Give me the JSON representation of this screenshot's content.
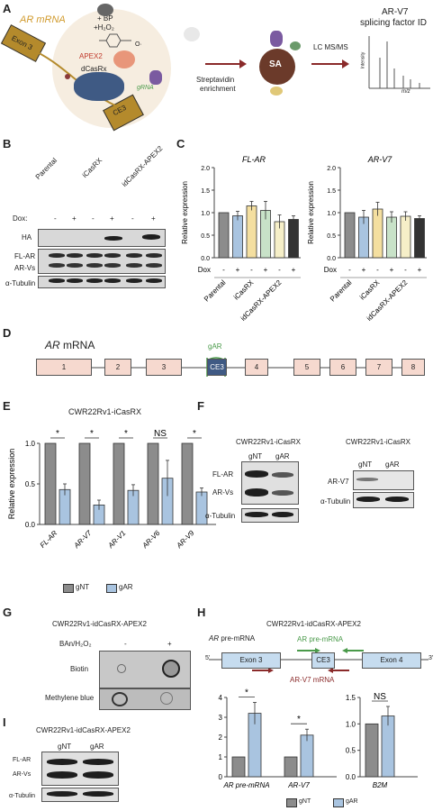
{
  "panels": {
    "A": "A",
    "B": "B",
    "C": "C",
    "D": "D",
    "E": "E",
    "F": "F",
    "G": "G",
    "H": "H",
    "I": "I"
  },
  "panelA": {
    "ar_mrna": "AR mRNA",
    "exon3": "Exon 3",
    "ce3": "CE3",
    "apex2": "APEX2",
    "dcasrx": "dCasRx",
    "grna": "gRNA",
    "bp": "+ BP",
    "h2o2": "+H₂O₂",
    "o_radical": "O·",
    "strep1": "Streptavidin",
    "strep2": "enrichment",
    "sa": "SA",
    "lcms": "LC MS/MS",
    "id1": "AR-V7",
    "id2": "splicing factor ID",
    "intensity": "Intensity",
    "mz": "m/z"
  },
  "panelB": {
    "lanes": [
      "Parental",
      "iCasRX",
      "idCasRX-APEX2"
    ],
    "dox_label": "Dox:",
    "dox": [
      "-",
      "+",
      "-",
      "+",
      "-",
      "+"
    ],
    "rows": [
      "HA",
      "FL-AR",
      "AR-Vs",
      "α-Tubulin"
    ]
  },
  "panelC": {
    "charts": [
      {
        "title": "FL-AR",
        "ylabel": "Relative expression",
        "ylim": [
          0,
          2.0
        ],
        "ticks": [
          "0.0",
          "0.5",
          "1.0",
          "1.5",
          "2.0"
        ],
        "values": [
          1.0,
          0.93,
          1.15,
          1.05,
          0.8,
          0.85
        ],
        "errors": [
          0.0,
          0.1,
          0.1,
          0.2,
          0.15,
          0.08
        ],
        "dox": [
          "-",
          "+",
          "-",
          "+",
          "-",
          "+"
        ],
        "dox_label": "Dox",
        "groups": [
          "Parental",
          "iCasRX",
          "idCasRX-APEX2"
        ]
      },
      {
        "title": "AR-V7",
        "ylabel": "Relative expression",
        "ylim": [
          0,
          2.0
        ],
        "ticks": [
          "0.0",
          "0.5",
          "1.0",
          "1.5",
          "2.0"
        ],
        "values": [
          1.0,
          0.9,
          1.08,
          0.9,
          0.92,
          0.87
        ],
        "errors": [
          0.0,
          0.15,
          0.15,
          0.12,
          0.1,
          0.06
        ],
        "dox": [
          "-",
          "+",
          "-",
          "+",
          "-",
          "+"
        ],
        "dox_label": "Dox",
        "groups": [
          "Parental",
          "iCasRX",
          "idCasRX-APEX2"
        ]
      }
    ],
    "colors": [
      "#8c8c8c",
      "#a9c4e0",
      "#f4dfa0",
      "#c8e2c8",
      "#f6efc8",
      "#333333"
    ]
  },
  "panelD": {
    "title_it": "AR",
    "title_rest": " mRNA",
    "gar": "gAR",
    "exons": [
      "1",
      "2",
      "3",
      "CE3",
      "4",
      "5",
      "6",
      "7",
      "8"
    ]
  },
  "chart_data": [
    {
      "type": "bar",
      "title": "CWR22Rv1-iCasRX",
      "ylabel": "Relative expression",
      "ylim": [
        0,
        1.0
      ],
      "ticks": [
        "0.0",
        "0.5",
        "1.0"
      ],
      "categories": [
        "FL-AR",
        "AR-V7",
        "AR-V1",
        "AR-V6",
        "AR-V9"
      ],
      "series": [
        {
          "name": "gNT",
          "values": [
            1.0,
            1.0,
            1.0,
            1.0,
            1.0
          ]
        },
        {
          "name": "gAR",
          "values": [
            0.43,
            0.24,
            0.42,
            0.57,
            0.4
          ]
        }
      ],
      "errors": [
        0.07,
        0.06,
        0.07,
        0.22,
        0.05
      ],
      "significance": [
        "*",
        "*",
        "*",
        "NS",
        "*"
      ]
    },
    {
      "type": "bar",
      "ylim": [
        0,
        4
      ],
      "ticks": [
        "0",
        "1",
        "2",
        "3",
        "4"
      ],
      "categories": [
        "AR pre-mRNA",
        "AR-V7"
      ],
      "series": [
        {
          "name": "gNT",
          "values": [
            1.0,
            1.0
          ]
        },
        {
          "name": "gAR",
          "values": [
            3.2,
            2.1
          ]
        }
      ],
      "errors": [
        0.55,
        0.3
      ],
      "significance": [
        "*",
        "*"
      ]
    },
    {
      "type": "bar",
      "ylim": [
        0,
        1.5
      ],
      "ticks": [
        "0.0",
        "0.5",
        "1.0",
        "1.5"
      ],
      "categories": [
        "B2M"
      ],
      "series": [
        {
          "name": "gNT",
          "values": [
            1.0
          ]
        },
        {
          "name": "gAR",
          "values": [
            1.15
          ]
        }
      ],
      "errors": [
        0.18
      ],
      "significance": [
        "NS"
      ]
    }
  ],
  "legend": {
    "gnt": "gNT",
    "gar": "gAR",
    "gnt_color": "#8c8c8c",
    "gar_color": "#a9c4e0"
  },
  "panelF": {
    "title1": "CWR22Rv1-iCasRX",
    "title2": "CWR22Rv1-iCasRX",
    "lanes": [
      "gNT",
      "gAR"
    ],
    "rows1": [
      "FL-AR",
      "AR-Vs",
      "α-Tubulin"
    ],
    "rows2": [
      "AR-V7",
      "α-Tubulin"
    ]
  },
  "panelG": {
    "title": "CWR22Rv1-idCasRX-APEX2",
    "treat": "BAn/H₂O₂",
    "minus": "-",
    "plus": "+",
    "rows": [
      "Biotin",
      "Methylene blue"
    ]
  },
  "panelH": {
    "title": "CWR22Rv1-idCasRX-APEX2",
    "pre_it": "AR",
    "pre_rest": " pre-mRNA",
    "primer1": "AR pre-mRNA",
    "primer2": "AR-V7 mRNA",
    "exon3": "Exon 3",
    "ce3": "CE3",
    "exon4": "Exon 4",
    "five": "5'",
    "three": "3'"
  },
  "panelI": {
    "title": "CWR22Rv1-idCasRX-APEX2",
    "lanes": [
      "gNT",
      "gAR"
    ],
    "rows": [
      "FL-AR",
      "AR-Vs",
      "α-Tubulin"
    ]
  }
}
